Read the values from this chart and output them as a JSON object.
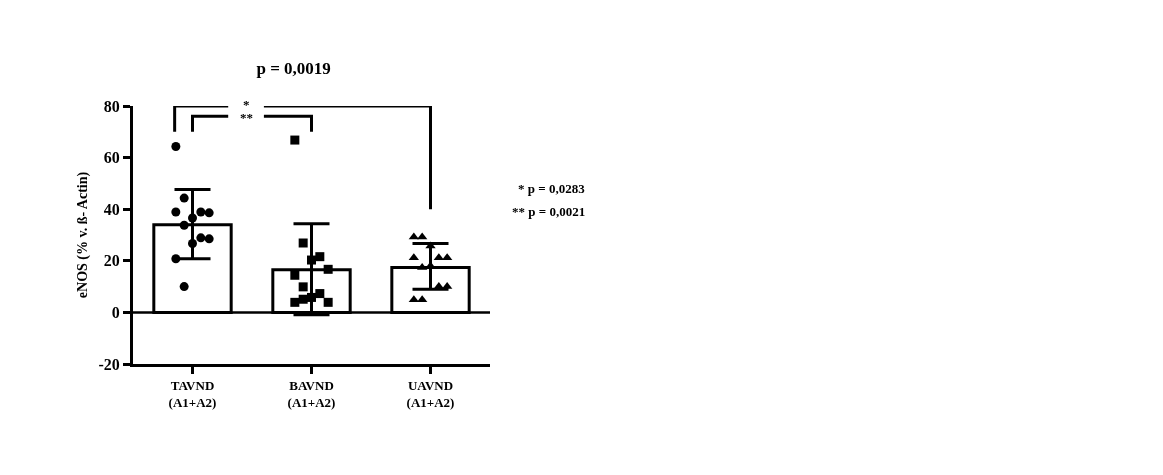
{
  "chart_data": {
    "type": "bar",
    "title": "p = 0,0019",
    "ylabel": "eNOS (% v. ß- Actin)",
    "categories": [
      "TAVND\n(A1+A2)",
      "BAVND\n(A1+A2)",
      "UAVND\n(A1+A2)"
    ],
    "series": [
      {
        "color": "#ffffff",
        "values": [
          34,
          16.5,
          17.4
        ],
        "errors": [
          [
            20.8,
            47.6
          ],
          [
            -0.9,
            34.4
          ],
          [
            9.0,
            26.7
          ]
        ]
      },
      {
        "type": "scatter",
        "marker": "circle",
        "color": "#000000",
        "x": [
          "TAVND\n(A1+A2)",
          "TAVND\n(A1+A2)",
          "TAVND\n(A1+A2)",
          "TAVND\n(A1+A2)",
          "TAVND\n(A1+A2)",
          "TAVND\n(A1+A2)",
          "TAVND\n(A1+A2)",
          "TAVND\n(A1+A2)",
          "TAVND\n(A1+A2)",
          "TAVND\n(A1+A2)",
          "TAVND\n(A1+A2)",
          "TAVND\n(A1+A2)"
        ],
        "values": [
          64.3,
          44.3,
          36.6,
          38.9,
          38.6,
          38.9,
          33.8,
          26.7,
          28.9,
          28.5,
          20.8,
          10.0
        ]
      },
      {
        "type": "scatter",
        "marker": "square",
        "color": "#000000",
        "x": [
          "BAVND\n(A1+A2)",
          "BAVND\n(A1+A2)",
          "BAVND\n(A1+A2)",
          "BAVND\n(A1+A2)",
          "BAVND\n(A1+A2)",
          "BAVND\n(A1+A2)",
          "BAVND\n(A1+A2)",
          "BAVND\n(A1+A2)",
          "BAVND\n(A1+A2)",
          "BAVND\n(A1+A2)",
          "BAVND\n(A1+A2)",
          "BAVND\n(A1+A2)"
        ],
        "values": [
          66.8,
          26.9,
          20.3,
          21.6,
          16.7,
          14.4,
          9.9,
          5.8,
          7.3,
          3.9,
          3.9,
          5.1
        ]
      },
      {
        "type": "scatter",
        "marker": "triangle",
        "color": "#000000",
        "x": [
          "UAVND\n(A1+A2)",
          "UAVND\n(A1+A2)",
          "UAVND\n(A1+A2)",
          "UAVND\n(A1+A2)",
          "UAVND\n(A1+A2)",
          "UAVND\n(A1+A2)",
          "UAVND\n(A1+A2)",
          "UAVND\n(A1+A2)",
          "UAVND\n(A1+A2)",
          "UAVND\n(A1+A2)",
          "UAVND\n(A1+A2)",
          "UAVND\n(A1+A2)"
        ],
        "values": [
          29.2,
          29.2,
          25.7,
          21.2,
          21.2,
          21.2,
          17.4,
          18.0,
          10.0,
          10.0,
          4.9,
          4.9
        ]
      }
    ],
    "ylim": [
      -20,
      80
    ],
    "yticks": [
      -20,
      0,
      20,
      40,
      60,
      80
    ],
    "grid": false,
    "ref_lines": [
      {
        "axis": "y",
        "value": 0,
        "color": "#000000"
      }
    ],
    "annotations": [
      "*",
      "**",
      "* p = 0,0283",
      "** p = 0,0021"
    ]
  }
}
